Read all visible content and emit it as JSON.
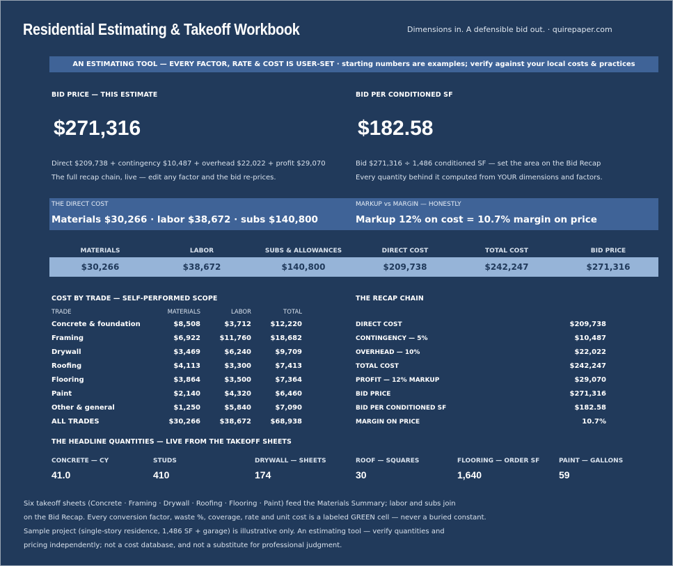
{
  "header": {
    "title": "Residential Estimating & Takeoff Workbook",
    "tagline": "Dimensions in. A defensible bid out.  ·  quirepaper.com"
  },
  "banner": "AN ESTIMATING TOOL — EVERY FACTOR, RATE & COST IS USER-SET  ·  starting numbers are examples; verify against your local costs & practices",
  "bid_price": {
    "label": "BID PRICE — THIS ESTIMATE",
    "value": "$271,316",
    "note1": "Direct $209,738 + contingency $10,487 + overhead $22,022 + profit $29,070",
    "note2": "The full recap chain, live — edit any factor and the bid re-prices."
  },
  "bid_per_sf": {
    "label": "BID PER CONDITIONED SF",
    "value": "$182.58",
    "note1": "Bid $271,316 ÷ 1,486 conditioned SF — set the area on the Bid Recap",
    "note2": "Every quantity behind it computed from YOUR dimensions and factors."
  },
  "direct_cost_box": {
    "label": "THE DIRECT COST",
    "value": "Materials $30,266 · labor $38,672 · subs $140,800"
  },
  "markup_box": {
    "label": "MARKUP vs MARGIN — HONESTLY",
    "value": "Markup 12% on cost = 10.7% margin on price"
  },
  "summary": [
    {
      "label": "MATERIALS",
      "value": "$30,266"
    },
    {
      "label": "LABOR",
      "value": "$38,672"
    },
    {
      "label": "SUBS & ALLOWANCES",
      "value": "$140,800"
    },
    {
      "label": "DIRECT COST",
      "value": "$209,738"
    },
    {
      "label": "TOTAL COST",
      "value": "$242,247"
    },
    {
      "label": "BID PRICE",
      "value": "$271,316"
    }
  ],
  "trades": {
    "title": "COST BY TRADE — SELF-PERFORMED SCOPE",
    "headers": [
      "TRADE",
      "MATERIALS",
      "LABOR",
      "TOTAL"
    ],
    "rows": [
      [
        "Concrete & foundation",
        "$8,508",
        "$3,712",
        "$12,220"
      ],
      [
        "Framing",
        "$6,922",
        "$11,760",
        "$18,682"
      ],
      [
        "Drywall",
        "$3,469",
        "$6,240",
        "$9,709"
      ],
      [
        "Roofing",
        "$4,113",
        "$3,300",
        "$7,413"
      ],
      [
        "Flooring",
        "$3,864",
        "$3,500",
        "$7,364"
      ],
      [
        "Paint",
        "$2,140",
        "$4,320",
        "$6,460"
      ],
      [
        "Other & general",
        "$1,250",
        "$5,840",
        "$7,090"
      ],
      [
        "ALL TRADES",
        "$30,266",
        "$38,672",
        "$68,938"
      ]
    ]
  },
  "recap": {
    "title": "THE RECAP CHAIN",
    "rows": [
      [
        "DIRECT COST",
        "$209,738"
      ],
      [
        "CONTINGENCY — 5%",
        "$10,487"
      ],
      [
        "OVERHEAD — 10%",
        "$22,022"
      ],
      [
        "TOTAL COST",
        "$242,247"
      ],
      [
        "PROFIT — 12% MARKUP",
        "$29,070"
      ],
      [
        "BID PRICE",
        "$271,316"
      ],
      [
        "BID PER CONDITIONED SF",
        "$182.58"
      ],
      [
        "MARGIN ON PRICE",
        "10.7%"
      ]
    ]
  },
  "quantities": {
    "title": "THE HEADLINE QUANTITIES — LIVE FROM THE TAKEOFF SHEETS",
    "items": [
      {
        "label": "CONCRETE — CY",
        "value": "41.0"
      },
      {
        "label": "STUDS",
        "value": "410"
      },
      {
        "label": "DRYWALL — SHEETS",
        "value": "174"
      },
      {
        "label": "ROOF — SQUARES",
        "value": "30"
      },
      {
        "label": "FLOORING — ORDER SF",
        "value": "1,640"
      },
      {
        "label": "PAINT — GALLONS",
        "value": "59"
      }
    ]
  },
  "footer": [
    "Six takeoff sheets (Concrete · Framing · Drywall · Roofing · Flooring · Paint) feed the Materials Summary; labor and subs join",
    "on the Bid Recap. Every conversion factor, waste %, coverage, rate and unit cost is a labeled GREEN cell — never a buried constant.",
    "Sample project (single-story residence, 1,486 SF + garage) is illustrative only. An estimating tool — verify quantities and",
    "pricing independently; not a cost database, and not a substitute for professional judgment."
  ]
}
